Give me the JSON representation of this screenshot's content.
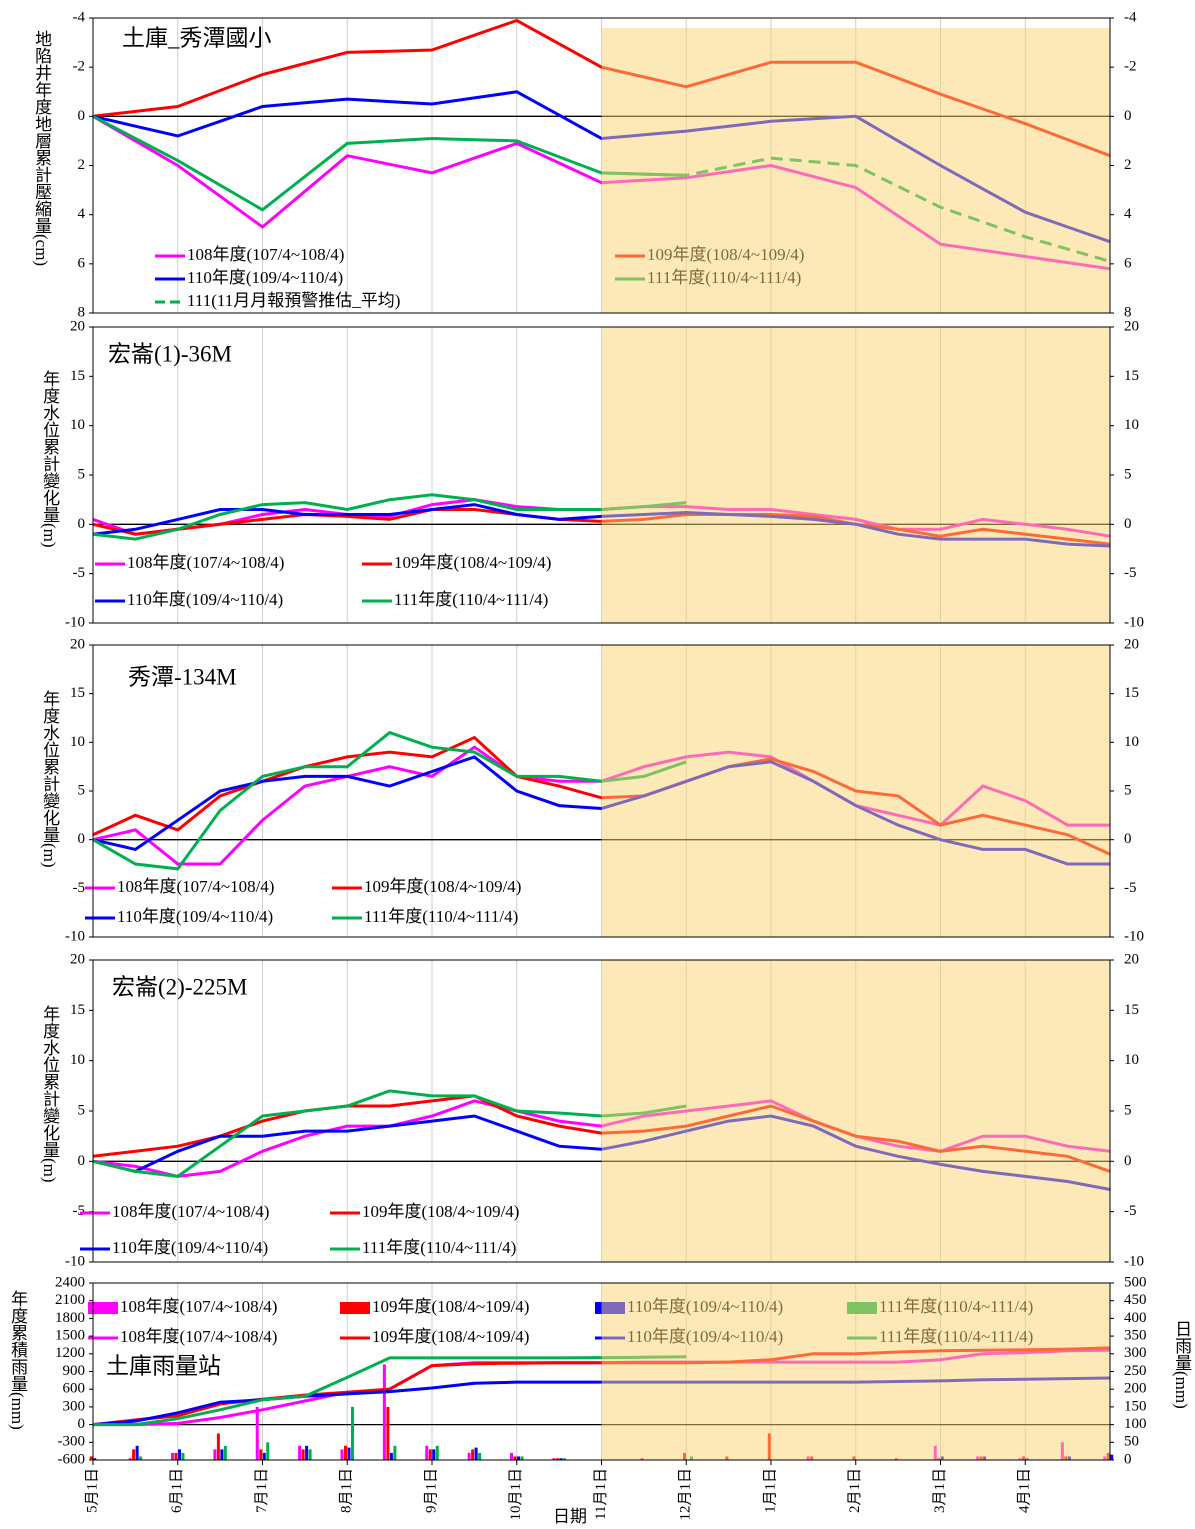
{
  "chart_data": [
    {
      "type": "line",
      "title": "土庫_秀潭國小",
      "ylabel": "地陷井年度地層累計壓縮量(cm)",
      "ylim": [
        -4,
        8
      ],
      "yticks": [
        -4,
        -2,
        0,
        2,
        4,
        6,
        8
      ],
      "y_reversed": true,
      "mirror_y": true,
      "shade_from": 12,
      "shade_color": "#fbd371",
      "series": [
        {
          "name": "108年度(107/4~108/4)",
          "color": "#ff00ff",
          "values": [
            0,
            1,
            2,
            3.25,
            4.5,
            3.05,
            1.6,
            1.95,
            2.3,
            1.7,
            1.1,
            1.9,
            2.7,
            2.6,
            2.5,
            2.25,
            2.0,
            2.45,
            2.9,
            4.05,
            5.2,
            5.45,
            5.7,
            5.95,
            6.2
          ]
        },
        {
          "name": "109年度(108/4~109/4)",
          "color": "#ff0000",
          "values": [
            0,
            -0.2,
            -0.4,
            -1.05,
            -1.7,
            -2.15,
            -2.6,
            -2.65,
            -2.7,
            -3.3,
            -3.9,
            -2.95,
            -2.0,
            -1.6,
            -1.2,
            -1.7,
            -2.2,
            -2.2,
            -2.2,
            -1.55,
            -0.9,
            -0.3,
            0.3,
            0.95,
            1.6
          ]
        },
        {
          "name": "110年度(109/4~110/4)",
          "color": "#0000ff",
          "values": [
            0,
            0.4,
            0.8,
            0.2,
            -0.4,
            -0.55,
            -0.7,
            -0.6,
            -0.5,
            -0.75,
            -1.0,
            -0.05,
            0.9,
            0.75,
            0.6,
            0.4,
            0.2,
            0.1,
            0.0,
            1.0,
            2.0,
            2.95,
            3.9,
            4.5,
            5.1
          ]
        },
        {
          "name": "111年度(110/4~111/4)",
          "color": "#00b050",
          "values": [
            0,
            0.9,
            1.8,
            2.8,
            3.8,
            2.45,
            1.1,
            1.0,
            0.9,
            0.95,
            1.0,
            1.65,
            2.3,
            2.35,
            2.4,
            null,
            null,
            null,
            null,
            null,
            null,
            null,
            null,
            null,
            null
          ]
        },
        {
          "name": "111(11月月報預警推估_平均)",
          "color": "#00b050",
          "dash": true,
          "values": [
            null,
            null,
            null,
            null,
            null,
            null,
            null,
            null,
            null,
            null,
            null,
            null,
            2.3,
            2.35,
            2.4,
            2.05,
            1.7,
            1.85,
            2.0,
            2.85,
            3.7,
            4.3,
            4.9,
            5.4,
            5.9
          ]
        }
      ]
    },
    {
      "type": "line",
      "title": "宏崙(1)-36M",
      "ylabel": "年度水位累計變化量(m)",
      "ylim": [
        -10,
        20
      ],
      "yticks": [
        -10,
        -5,
        0,
        5,
        10,
        15,
        20
      ],
      "mirror_y": true,
      "shade_from": 12,
      "shade_color": "#fbd371",
      "series": [
        {
          "name": "108年度(107/4~108/4)",
          "color": "#ff00ff",
          "values": [
            0.5,
            -1,
            -0.5,
            0,
            1.0,
            1.5,
            1.0,
            0.8,
            2.0,
            2.5,
            1.8,
            1.5,
            1.5,
            1.8,
            1.8,
            1.5,
            1.5,
            1.0,
            0.5,
            -0.5,
            -0.5,
            0.5,
            0,
            -0.5,
            -1.2
          ]
        },
        {
          "name": "109年度(108/4~109/4)",
          "color": "#ff0000",
          "values": [
            0,
            -1,
            -0.5,
            0,
            0.5,
            1.0,
            0.8,
            0.5,
            1.5,
            1.5,
            1.0,
            0.5,
            0.3,
            0.5,
            1.0,
            1.0,
            1.0,
            0.8,
            0,
            -0.5,
            -1.2,
            -0.5,
            -1.0,
            -1.5,
            -2.0
          ]
        },
        {
          "name": "110年度(109/4~110/4)",
          "color": "#0000ff",
          "values": [
            -1,
            -0.5,
            0.5,
            1.5,
            1.5,
            1.0,
            1.0,
            1.0,
            1.5,
            2.0,
            1.0,
            0.5,
            0.8,
            1.0,
            1.2,
            1.0,
            0.8,
            0.5,
            0,
            -1.0,
            -1.5,
            -1.5,
            -1.5,
            -2.0,
            -2.2
          ]
        },
        {
          "name": "111年度(110/4~111/4)",
          "color": "#00b050",
          "values": [
            -1,
            -1.5,
            -0.5,
            1.0,
            2.0,
            2.2,
            1.5,
            2.5,
            3.0,
            2.5,
            1.5,
            1.5,
            1.5,
            1.8,
            2.2,
            null,
            null,
            null,
            null,
            null,
            null,
            null,
            null,
            null,
            null
          ]
        }
      ]
    },
    {
      "type": "line",
      "title": "秀潭-134M",
      "ylabel": "年度水位累計變化量(m)",
      "ylim": [
        -10,
        20
      ],
      "yticks": [
        -10,
        -5,
        0,
        5,
        10,
        15,
        20
      ],
      "mirror_y": true,
      "shade_from": 12,
      "shade_color": "#fbd371",
      "series": [
        {
          "name": "108年度(107/4~108/4)",
          "color": "#ff00ff",
          "values": [
            0,
            1,
            -2.5,
            -2.5,
            2,
            5.5,
            6.5,
            7.5,
            6.5,
            9.5,
            6.5,
            6,
            6,
            7.5,
            8.5,
            9,
            8.5,
            6,
            3.5,
            2.5,
            1.5,
            5.5,
            4,
            1.5,
            1.5
          ]
        },
        {
          "name": "109年度(108/4~109/4)",
          "color": "#ff0000",
          "values": [
            0.5,
            2.5,
            1.0,
            4.5,
            6.0,
            7.5,
            8.5,
            9.0,
            8.5,
            10.5,
            6.5,
            5.5,
            4.3,
            4.5,
            6,
            7.5,
            8.3,
            7,
            5,
            4.5,
            1.5,
            2.5,
            1.5,
            0.5,
            -1.5
          ]
        },
        {
          "name": "110年度(109/4~110/4)",
          "color": "#0000ff",
          "values": [
            0,
            -1.0,
            2,
            5,
            6.0,
            6.5,
            6.5,
            5.5,
            7.0,
            8.5,
            5.0,
            3.5,
            3.2,
            4.5,
            6,
            7.5,
            8.0,
            6,
            3.5,
            1.5,
            0,
            -1,
            -1,
            -2.5,
            -2.5
          ]
        },
        {
          "name": "111年度(110/4~111/4)",
          "color": "#00b050",
          "values": [
            0,
            -2.5,
            -3.0,
            3.0,
            6.5,
            7.5,
            7.5,
            11,
            9.5,
            9,
            6.5,
            6.5,
            6,
            6.5,
            8,
            null,
            null,
            null,
            null,
            null,
            null,
            null,
            null,
            null,
            null
          ]
        }
      ]
    },
    {
      "type": "line",
      "title": "宏崙(2)-225M",
      "ylabel": "年度水位累計變化量(m)",
      "ylim": [
        -10,
        20
      ],
      "yticks": [
        -10,
        -5,
        0,
        5,
        10,
        15,
        20
      ],
      "mirror_y": true,
      "shade_from": 12,
      "shade_color": "#fbd371",
      "series": [
        {
          "name": "108年度(107/4~108/4)",
          "color": "#ff00ff",
          "values": [
            0,
            -0.5,
            -1.5,
            -1.0,
            1,
            2.5,
            3.5,
            3.5,
            4.5,
            6.0,
            5,
            4,
            3.5,
            4.5,
            5.0,
            5.5,
            6,
            4,
            2.5,
            1.5,
            1.0,
            2.5,
            2.5,
            1.5,
            1.0
          ]
        },
        {
          "name": "109年度(108/4~109/4)",
          "color": "#ff0000",
          "values": [
            0.5,
            1.0,
            1.5,
            2.5,
            4.0,
            5,
            5.5,
            5.5,
            6.0,
            6.5,
            4.5,
            3.5,
            2.8,
            3.0,
            3.5,
            4.5,
            5.5,
            4,
            2.5,
            2,
            1.0,
            1.5,
            1.0,
            0.5,
            -1.0
          ]
        },
        {
          "name": "110年度(109/4~110/4)",
          "color": "#0000ff",
          "values": [
            0,
            -1.0,
            1.0,
            2.5,
            2.5,
            3.0,
            3.0,
            3.5,
            4.0,
            4.5,
            3.0,
            1.5,
            1.2,
            2,
            3.0,
            4.0,
            4.5,
            3.5,
            1.5,
            0.5,
            -0.3,
            -1,
            -1.5,
            -2.0,
            -2.8
          ]
        },
        {
          "name": "111年度(110/4~111/4)",
          "color": "#00b050",
          "values": [
            0,
            -1.0,
            -1.5,
            1.5,
            4.5,
            5,
            5.5,
            7.0,
            6.5,
            6.5,
            5.0,
            4.8,
            4.5,
            4.8,
            5.5,
            null,
            null,
            null,
            null,
            null,
            null,
            null,
            null,
            null,
            null
          ]
        }
      ]
    },
    {
      "type": "combo",
      "title": "土庫雨量站",
      "ylabel": "年度累積雨量(mm)",
      "y2label": "日雨量(mm)",
      "xlabel": "日期",
      "categories": [
        "5月1日",
        null,
        "6月1日",
        null,
        "7月1日",
        null,
        "8月1日",
        null,
        "9月1日",
        null,
        "10月1日",
        null,
        "11月1日",
        null,
        "12月1日",
        null,
        "1月1日",
        null,
        "2月1日",
        null,
        "3月1日",
        null,
        "4月1日",
        null,
        null
      ],
      "ylim": [
        -600,
        2400
      ],
      "yticks": [
        -600,
        -300,
        0,
        300,
        600,
        900,
        1200,
        1500,
        1800,
        2100,
        2400
      ],
      "y2lim": [
        0,
        500
      ],
      "y2ticks": [
        0,
        50,
        100,
        150,
        200,
        250,
        300,
        350,
        400,
        450,
        500
      ],
      "shade_from": 12,
      "shade_color": "#fbd371",
      "series": [
        {
          "name": "108年度(107/4~108/4)",
          "kind": "bar",
          "axis": "y2",
          "color": "#ff00ff",
          "values": [
            0,
            5,
            20,
            30,
            150,
            40,
            30,
            270,
            40,
            20,
            20,
            5,
            0,
            0,
            0,
            0,
            0,
            10,
            0,
            0,
            40,
            10,
            5,
            50,
            10
          ]
        },
        {
          "name": "109年度(108/4~109/4)",
          "kind": "bar",
          "axis": "y2",
          "color": "#ff0000",
          "values": [
            10,
            30,
            20,
            75,
            30,
            30,
            40,
            150,
            30,
            30,
            10,
            5,
            0,
            5,
            20,
            10,
            75,
            10,
            10,
            5,
            5,
            10,
            10,
            10,
            20
          ]
        },
        {
          "name": "110年度(109/4~110/4)",
          "kind": "bar",
          "axis": "y2",
          "color": "#0000ff",
          "values": [
            5,
            40,
            30,
            30,
            20,
            40,
            35,
            20,
            30,
            35,
            10,
            5,
            0,
            0,
            0,
            0,
            0,
            0,
            0,
            0,
            10,
            10,
            5,
            10,
            15
          ]
        },
        {
          "name": "111年度(110/4~111/4)",
          "kind": "bar",
          "axis": "y2",
          "color": "#00b050",
          "values": [
            0,
            10,
            20,
            40,
            50,
            30,
            150,
            40,
            40,
            20,
            10,
            5,
            0,
            0,
            10,
            null,
            null,
            null,
            null,
            null,
            null,
            null,
            null,
            null,
            null
          ]
        },
        {
          "name": "108年度(107/4~108/4)",
          "kind": "line",
          "color": "#ff00ff",
          "values": [
            0,
            0,
            20,
            120,
            250,
            400,
            550,
            600,
            1000,
            1050,
            1050,
            1050,
            1050,
            1060,
            1060,
            1060,
            1060,
            1060,
            1060,
            1060,
            1100,
            1200,
            1220,
            1250,
            1260
          ]
        },
        {
          "name": "109年度(108/4~109/4)",
          "kind": "line",
          "color": "#ff0000",
          "values": [
            0,
            80,
            150,
            350,
            430,
            500,
            550,
            600,
            1000,
            1030,
            1040,
            1050,
            1050,
            1050,
            1050,
            1060,
            1100,
            1200,
            1200,
            1230,
            1250,
            1260,
            1270,
            1280,
            1300
          ]
        },
        {
          "name": "110年度(109/4~110/4)",
          "kind": "line",
          "color": "#0000ff",
          "values": [
            0,
            60,
            200,
            380,
            420,
            480,
            520,
            560,
            620,
            700,
            720,
            720,
            720,
            720,
            720,
            720,
            720,
            720,
            720,
            730,
            740,
            760,
            770,
            780,
            790
          ]
        },
        {
          "name": "111年度(110/4~111/4)",
          "kind": "line",
          "color": "#00b050",
          "values": [
            0,
            0,
            100,
            250,
            420,
            480,
            800,
            1130,
            1130,
            1130,
            1130,
            1130,
            1135,
            1140,
            1150,
            null,
            null,
            null,
            null,
            null,
            null,
            null,
            null,
            null,
            null
          ]
        }
      ]
    }
  ]
}
